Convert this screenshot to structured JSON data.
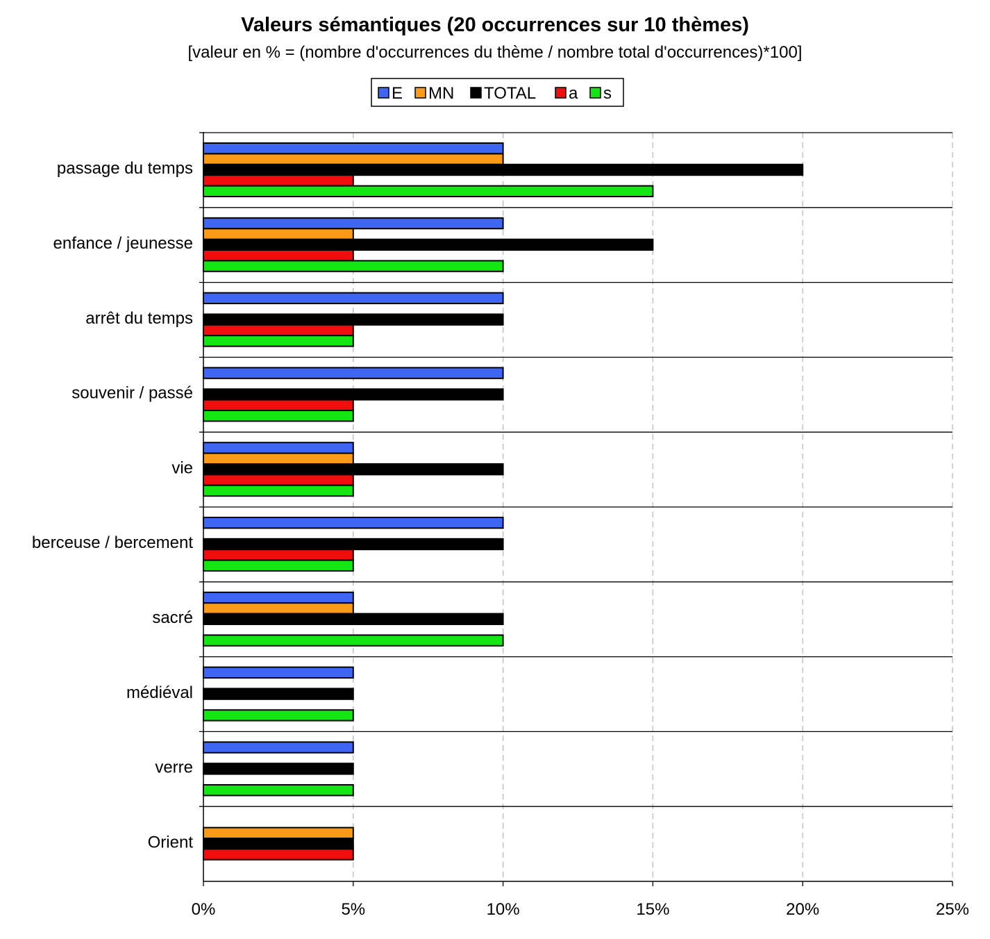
{
  "chart_data": {
    "type": "bar",
    "orientation": "horizontal",
    "title": "Valeurs sémantiques (20 occurrences sur 10 thèmes)",
    "subtitle": "[valeur en % = (nombre d'occurrences du thème / nombre total d'occurrences)*100]",
    "xlabel": "",
    "ylabel": "",
    "xlim": [
      0,
      25
    ],
    "x_ticks": [
      0,
      5,
      10,
      15,
      20,
      25
    ],
    "x_tick_suffix": "%",
    "grid": "vertical dashed",
    "legend_position": "top-center",
    "categories": [
      "passage du temps",
      "enfance / jeunesse",
      "arrêt du temps",
      "souvenir / passé",
      "vie",
      "berceuse / bercement",
      "sacré",
      "médiéval",
      "verre",
      "Orient"
    ],
    "series": [
      {
        "name": "E",
        "color": "#3f66f2",
        "values": [
          10,
          10,
          10,
          10,
          5,
          10,
          5,
          5,
          5,
          0
        ]
      },
      {
        "name": "MN",
        "color": "#fa9a16",
        "values": [
          10,
          5,
          0,
          0,
          5,
          0,
          5,
          0,
          0,
          5
        ]
      },
      {
        "name": "TOTAL",
        "color": "#000000",
        "values": [
          20,
          15,
          10,
          10,
          10,
          10,
          10,
          5,
          5,
          5
        ]
      },
      {
        "name": "a",
        "color": "#f00d0d",
        "values": [
          5,
          5,
          5,
          5,
          5,
          5,
          0,
          0,
          0,
          5
        ]
      },
      {
        "name": "s",
        "color": "#14e614",
        "values": [
          15,
          10,
          5,
          5,
          5,
          5,
          10,
          5,
          5,
          0
        ]
      }
    ]
  }
}
